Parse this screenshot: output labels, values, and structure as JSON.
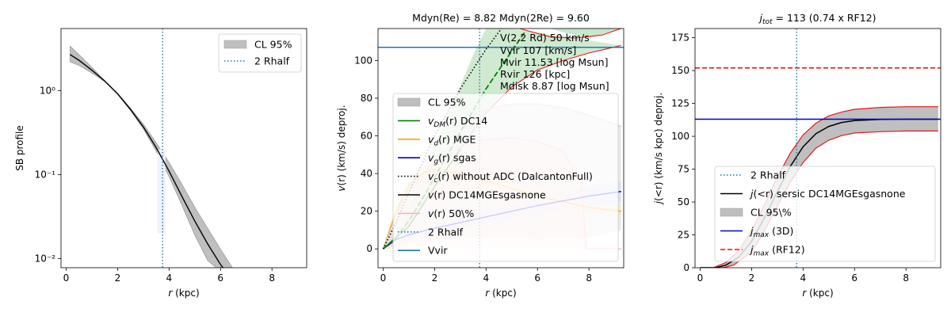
{
  "chart_data": [
    {
      "type": "line",
      "title": "",
      "xlabel": "r (kpc)",
      "ylabel": "SB profile",
      "yscale": "log",
      "xlim": [
        -0.2,
        9.35
      ],
      "ylim": [
        0.0078,
        5.5
      ],
      "xticks": [
        0,
        2,
        4,
        6,
        8
      ],
      "xtick_labels": [
        "0",
        "2",
        "4",
        "6",
        "8"
      ],
      "yticks": [
        0.01,
        0.1,
        1
      ],
      "ytick_labels": [
        "10⁻²",
        "10⁻¹",
        "10⁰"
      ],
      "legend_position": "top-right",
      "legend": [
        {
          "label": "CL 95%",
          "style": "band",
          "color": "#bfbfbf"
        },
        {
          "label": "2 Rhalf",
          "style": "dotted",
          "color": "#1f77b4"
        }
      ],
      "series": [
        {
          "name": "median",
          "x": [
            0.15,
            0.5,
            1.0,
            1.5,
            2.0,
            2.5,
            3.0,
            3.5,
            4.0,
            4.5,
            5.0,
            5.5,
            6.0,
            6.3
          ],
          "y": [
            2.7,
            2.3,
            1.75,
            1.3,
            0.92,
            0.6,
            0.37,
            0.21,
            0.11,
            0.055,
            0.028,
            0.015,
            0.0085,
            0.0065
          ]
        },
        {
          "name": "upper",
          "x": [
            0.15,
            0.5,
            1.0,
            1.5,
            2.0,
            2.5,
            3.0,
            3.5,
            4.0,
            4.5,
            5.0,
            5.5,
            6.0,
            6.5
          ],
          "y": [
            3.4,
            2.7,
            1.9,
            1.32,
            0.93,
            0.62,
            0.4,
            0.24,
            0.14,
            0.077,
            0.041,
            0.023,
            0.013,
            0.0075
          ]
        },
        {
          "name": "lower",
          "x": [
            0.15,
            0.5,
            1.0,
            1.5,
            2.0,
            2.5,
            3.0,
            3.5,
            4.0,
            4.5,
            5.0,
            5.5,
            5.9
          ],
          "y": [
            2.2,
            2.0,
            1.62,
            1.28,
            0.9,
            0.58,
            0.35,
            0.19,
            0.095,
            0.043,
            0.019,
            0.0095,
            0.0075
          ]
        }
      ],
      "vline_x": 3.75
    },
    {
      "type": "line",
      "title": "Mdyn(Re) = 8.82  Mdyn(2Re) = 9.60",
      "xlabel": "r (kpc)",
      "ylabel": "v(r) (km/s) deproj.",
      "xlim": [
        -0.2,
        9.35
      ],
      "ylim": [
        -10,
        117
      ],
      "xticks": [
        0,
        2,
        4,
        6,
        8
      ],
      "xtick_labels": [
        "0",
        "2",
        "4",
        "6",
        "8"
      ],
      "yticks": [
        0,
        20,
        40,
        60,
        80,
        100
      ],
      "ytick_labels": [
        "0",
        "20",
        "40",
        "60",
        "80",
        "100"
      ],
      "annotations": [
        "V(2.2 Rd) 50 km/s",
        "Vvir 107 [km/s]",
        "Mvir 11.53 [log Msun]",
        "Rvir 126 [kpc]",
        "Mdisk 8.87 [log Msun]"
      ],
      "legend_position": "center-right",
      "legend": [
        {
          "label": "CL 95%",
          "style": "band",
          "color": "#bfbfbf"
        },
        {
          "label": "v_DM(r) DC14",
          "math": "v",
          "sub": "DM",
          "rest": "(r) DC14",
          "style": "solid",
          "color": "#008000"
        },
        {
          "label": "v_d(r) MGE",
          "math": "v",
          "sub": "d",
          "rest": "(r) MGE",
          "style": "solid",
          "color": "#ffa500"
        },
        {
          "label": "v_g(r) sgas",
          "math": "v",
          "sub": "g",
          "rest": "(r) sgas",
          "style": "solid",
          "color": "#0000cd"
        },
        {
          "label": "v_c(r) without ADC (DalcantonFull)",
          "math": "v",
          "sub": "c",
          "rest": "(r) without ADC (DalcantonFull)",
          "style": "dotted",
          "color": "#000000"
        },
        {
          "label": "v(r) DC14MGEsgasnone",
          "math": "v",
          "sub": "",
          "rest": "(r) DC14MGEsgasnone",
          "style": "solid",
          "color": "#000000"
        },
        {
          "label": "v(r) 50\\%",
          "math": "v",
          "sub": "",
          "rest": "(r) 50\\%",
          "style": "solid",
          "color": "#ffb0b0"
        },
        {
          "label": "2 Rhalf",
          "style": "dotted",
          "color": "#1f77b4"
        },
        {
          "label": "Vvir",
          "style": "solid",
          "color": "#1f77b4"
        }
      ],
      "hline_y": 107,
      "vline_x": 3.75,
      "series": [
        {
          "name": "v_total",
          "x": [
            0,
            0.5,
            1,
            1.5,
            2,
            3,
            4,
            5,
            6,
            7,
            8,
            9.25
          ],
          "y": [
            0,
            18,
            32,
            44,
            54,
            67,
            74,
            77,
            77,
            75,
            71,
            65
          ]
        },
        {
          "name": "v_dm",
          "x": [
            0,
            0.5,
            1,
            1.5,
            2,
            3,
            4,
            5,
            5.5
          ],
          "y": [
            0,
            6,
            15,
            26,
            38,
            62,
            85,
            105,
            115
          ]
        },
        {
          "name": "v_c_noadc",
          "x": [
            0,
            0.5,
            1,
            1.5,
            2,
            3,
            4,
            4.6
          ],
          "y": [
            0,
            14,
            30,
            45,
            60,
            85,
            106,
            117
          ]
        },
        {
          "name": "v_dm_band_low",
          "x": [
            0,
            1,
            2,
            3,
            4,
            5,
            6,
            7,
            8,
            9.25
          ],
          "y": [
            0,
            12,
            33,
            53,
            72,
            86,
            95,
            100,
            104,
            108
          ]
        },
        {
          "name": "v_dm_band_high",
          "x": [
            0,
            1,
            2,
            2.8,
            3.5,
            4,
            5
          ],
          "y": [
            0,
            22,
            55,
            80,
            103,
            117,
            117
          ]
        },
        {
          "name": "v_red_high",
          "x": [
            6.5,
            7,
            8,
            9.25
          ],
          "y": [
            117,
            115,
            112,
            117
          ]
        },
        {
          "name": "v_gas",
          "x": [
            0,
            0.5,
            1,
            2,
            3,
            4,
            5,
            6,
            7,
            8,
            9.25
          ],
          "y": [
            0,
            5,
            7.5,
            11,
            14,
            17,
            20,
            23,
            25.5,
            28,
            30.5
          ]
        },
        {
          "name": "v_disk",
          "x": [
            0,
            0.5,
            1,
            1.5,
            2,
            3,
            4,
            5,
            6,
            7,
            8,
            9.25
          ],
          "y": [
            0,
            20,
            34,
            40,
            42,
            40,
            36,
            32,
            28,
            25,
            22,
            20
          ]
        },
        {
          "name": "v_pink",
          "x": [
            0,
            0.5,
            1,
            2,
            3,
            4,
            5,
            6,
            7,
            7.7,
            7.9,
            9.25
          ],
          "y": [
            0,
            20,
            32,
            46,
            54,
            58,
            59,
            57,
            52,
            35,
            0,
            0
          ]
        }
      ]
    },
    {
      "type": "line",
      "title": "j_tot = 113 (0.74 x RF12)",
      "title_math": "j",
      "title_sub": "tot",
      "title_rest": " = 113 (0.74 x RF12)",
      "xlabel": "r (kpc)",
      "ylabel": "j(<r) (km/s kpc) deproj.",
      "xlim": [
        -0.2,
        9.35
      ],
      "ylim": [
        0,
        182
      ],
      "xticks": [
        0,
        2,
        4,
        6,
        8
      ],
      "xtick_labels": [
        "0",
        "2",
        "4",
        "6",
        "8"
      ],
      "yticks": [
        0,
        25,
        50,
        75,
        100,
        125,
        150,
        175
      ],
      "ytick_labels": [
        "0",
        "25",
        "50",
        "75",
        "100",
        "125",
        "150",
        "175"
      ],
      "legend_position": "lower-right",
      "legend": [
        {
          "label": "2 Rhalf",
          "style": "dotted",
          "color": "#1f77b4"
        },
        {
          "label": "j(<r) sersic DC14MGEsgasnone",
          "math": "j",
          "sub": "",
          "rest": "(<r) sersic DC14MGEsgasnone",
          "style": "solid",
          "color": "#000000"
        },
        {
          "label": "CL 95\\%",
          "style": "band",
          "color": "#bfbfbf"
        },
        {
          "label": "j_max (3D)",
          "math": "j",
          "sub": "max",
          "rest": " (3D)",
          "style": "solid",
          "color": "#0000cd"
        },
        {
          "label": "j_max (RF12)",
          "math": "j",
          "sub": "max",
          "rest": " (RF12)",
          "style": "dashed",
          "color": "#ff0000"
        }
      ],
      "hlines": [
        {
          "y": 113,
          "color": "#0000cd",
          "style": "solid"
        },
        {
          "y": 152,
          "color": "#ff0000",
          "style": "dashed"
        }
      ],
      "vline_x": 3.75,
      "series": [
        {
          "name": "j_median",
          "x": [
            0,
            0.6,
            1,
            1.5,
            2,
            2.5,
            3,
            3.5,
            4,
            4.5,
            5,
            5.5,
            6,
            7,
            8,
            9.25
          ],
          "y": [
            0,
            0,
            2,
            8,
            20,
            38,
            58,
            77,
            92,
            102,
            107.5,
            110.5,
            112,
            112.8,
            113,
            113
          ]
        },
        {
          "name": "j_upper",
          "x": [
            0,
            0.5,
            1,
            1.5,
            2,
            2.5,
            3,
            3.5,
            4,
            4.5,
            5,
            5.5,
            6,
            7,
            8,
            9.25
          ],
          "y": [
            0,
            0,
            4,
            13,
            28,
            48,
            69,
            87,
            101,
            110,
            115.5,
            118.5,
            120.5,
            122,
            122.5,
            122.5
          ]
        },
        {
          "name": "j_lower",
          "x": [
            0,
            0.9,
            1.3,
            2,
            2.5,
            3,
            3.5,
            4,
            4.5,
            5,
            5.5,
            6,
            7,
            8,
            9.25
          ],
          "y": [
            0,
            0,
            2,
            12,
            28,
            47,
            65,
            80,
            91,
            97,
            100.5,
            102.5,
            103.5,
            104,
            104
          ]
        }
      ]
    }
  ]
}
